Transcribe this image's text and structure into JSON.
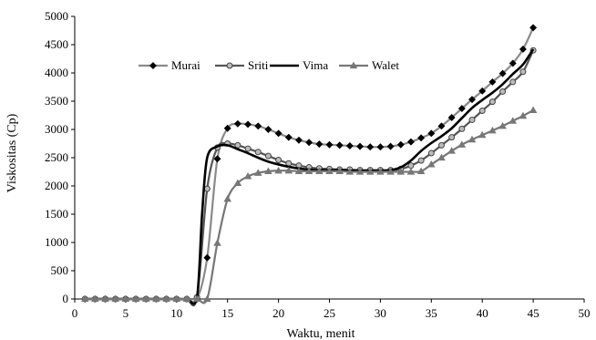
{
  "chart_data": {
    "type": "line",
    "title": "",
    "xlabel": "Waktu, menit",
    "ylabel": "Viskositas (Cp)",
    "xlim": [
      0,
      50
    ],
    "ylim": [
      0,
      5000
    ],
    "xticks": [
      0,
      5,
      10,
      15,
      20,
      25,
      30,
      35,
      40,
      45,
      50
    ],
    "yticks": [
      0,
      500,
      1000,
      1500,
      2000,
      2500,
      3000,
      3500,
      4000,
      4500,
      5000
    ],
    "grid": false,
    "legend_position": "top-center",
    "series": [
      {
        "name": "Murai",
        "color": "#8a8a8a",
        "marker": "diamond",
        "marker_color": "#000000",
        "x": [
          1,
          2,
          3,
          4,
          5,
          6,
          7,
          8,
          9,
          10,
          11,
          12,
          13,
          14,
          15,
          16,
          17,
          18,
          19,
          20,
          21,
          22,
          23,
          24,
          25,
          26,
          27,
          28,
          29,
          30,
          31,
          32,
          33,
          34,
          35,
          36,
          37,
          38,
          39,
          40,
          41,
          42,
          43,
          44,
          45
        ],
        "y": [
          0,
          0,
          0,
          0,
          0,
          0,
          0,
          0,
          0,
          0,
          0,
          0,
          730,
          2480,
          3020,
          3100,
          3090,
          3060,
          3000,
          2930,
          2860,
          2810,
          2770,
          2740,
          2730,
          2720,
          2710,
          2700,
          2690,
          2690,
          2700,
          2730,
          2780,
          2850,
          2930,
          3060,
          3210,
          3370,
          3530,
          3680,
          3840,
          3990,
          4170,
          4420,
          4800
        ]
      },
      {
        "name": "Sriti",
        "color": "#555555",
        "marker": "circle",
        "marker_color": "#bbbbbb",
        "x": [
          1,
          2,
          3,
          4,
          5,
          6,
          7,
          8,
          9,
          10,
          11,
          12,
          13,
          14,
          15,
          16,
          17,
          18,
          19,
          20,
          21,
          22,
          23,
          24,
          25,
          26,
          27,
          28,
          29,
          30,
          31,
          32,
          33,
          34,
          35,
          36,
          37,
          38,
          39,
          40,
          41,
          42,
          43,
          44,
          45
        ],
        "y": [
          0,
          0,
          0,
          0,
          0,
          0,
          0,
          0,
          0,
          0,
          0,
          30,
          1950,
          2680,
          2750,
          2720,
          2660,
          2600,
          2530,
          2460,
          2400,
          2360,
          2330,
          2310,
          2300,
          2290,
          2290,
          2280,
          2280,
          2280,
          2280,
          2300,
          2360,
          2450,
          2580,
          2720,
          2860,
          3010,
          3170,
          3330,
          3490,
          3670,
          3840,
          4020,
          4400
        ]
      },
      {
        "name": "Vima",
        "color": "#000000",
        "marker": "none",
        "x": [
          1,
          2,
          3,
          4,
          5,
          6,
          7,
          8,
          9,
          10,
          11,
          12,
          12.5,
          13,
          14,
          15,
          16,
          17,
          18,
          19,
          20,
          21,
          22,
          23,
          24,
          25,
          26,
          27,
          28,
          29,
          30,
          31,
          32,
          33,
          34,
          35,
          36,
          37,
          38,
          39,
          40,
          41,
          42,
          43,
          44,
          45
        ],
        "y": [
          0,
          0,
          0,
          0,
          0,
          0,
          0,
          0,
          0,
          0,
          0,
          30,
          1500,
          2500,
          2700,
          2720,
          2650,
          2580,
          2500,
          2430,
          2380,
          2340,
          2310,
          2290,
          2280,
          2280,
          2280,
          2270,
          2270,
          2270,
          2270,
          2280,
          2330,
          2450,
          2620,
          2760,
          2880,
          3020,
          3200,
          3380,
          3520,
          3650,
          3800,
          3980,
          4150,
          4420
        ]
      },
      {
        "name": "Walet",
        "color": "#777777",
        "marker": "triangle",
        "marker_color": "#777777",
        "x": [
          1,
          2,
          3,
          4,
          5,
          6,
          7,
          8,
          9,
          10,
          11,
          12,
          13,
          14,
          15,
          16,
          17,
          18,
          19,
          20,
          21,
          22,
          23,
          24,
          25,
          26,
          27,
          28,
          29,
          30,
          31,
          32,
          33,
          34,
          35,
          36,
          37,
          38,
          39,
          40,
          41,
          42,
          43,
          44,
          45
        ],
        "y": [
          0,
          0,
          0,
          0,
          0,
          0,
          0,
          0,
          0,
          0,
          0,
          0,
          0,
          990,
          1770,
          2050,
          2170,
          2230,
          2260,
          2270,
          2270,
          2260,
          2260,
          2260,
          2260,
          2260,
          2250,
          2250,
          2250,
          2250,
          2250,
          2250,
          2250,
          2260,
          2380,
          2500,
          2620,
          2730,
          2820,
          2900,
          2980,
          3060,
          3150,
          3240,
          3340
        ]
      }
    ]
  }
}
